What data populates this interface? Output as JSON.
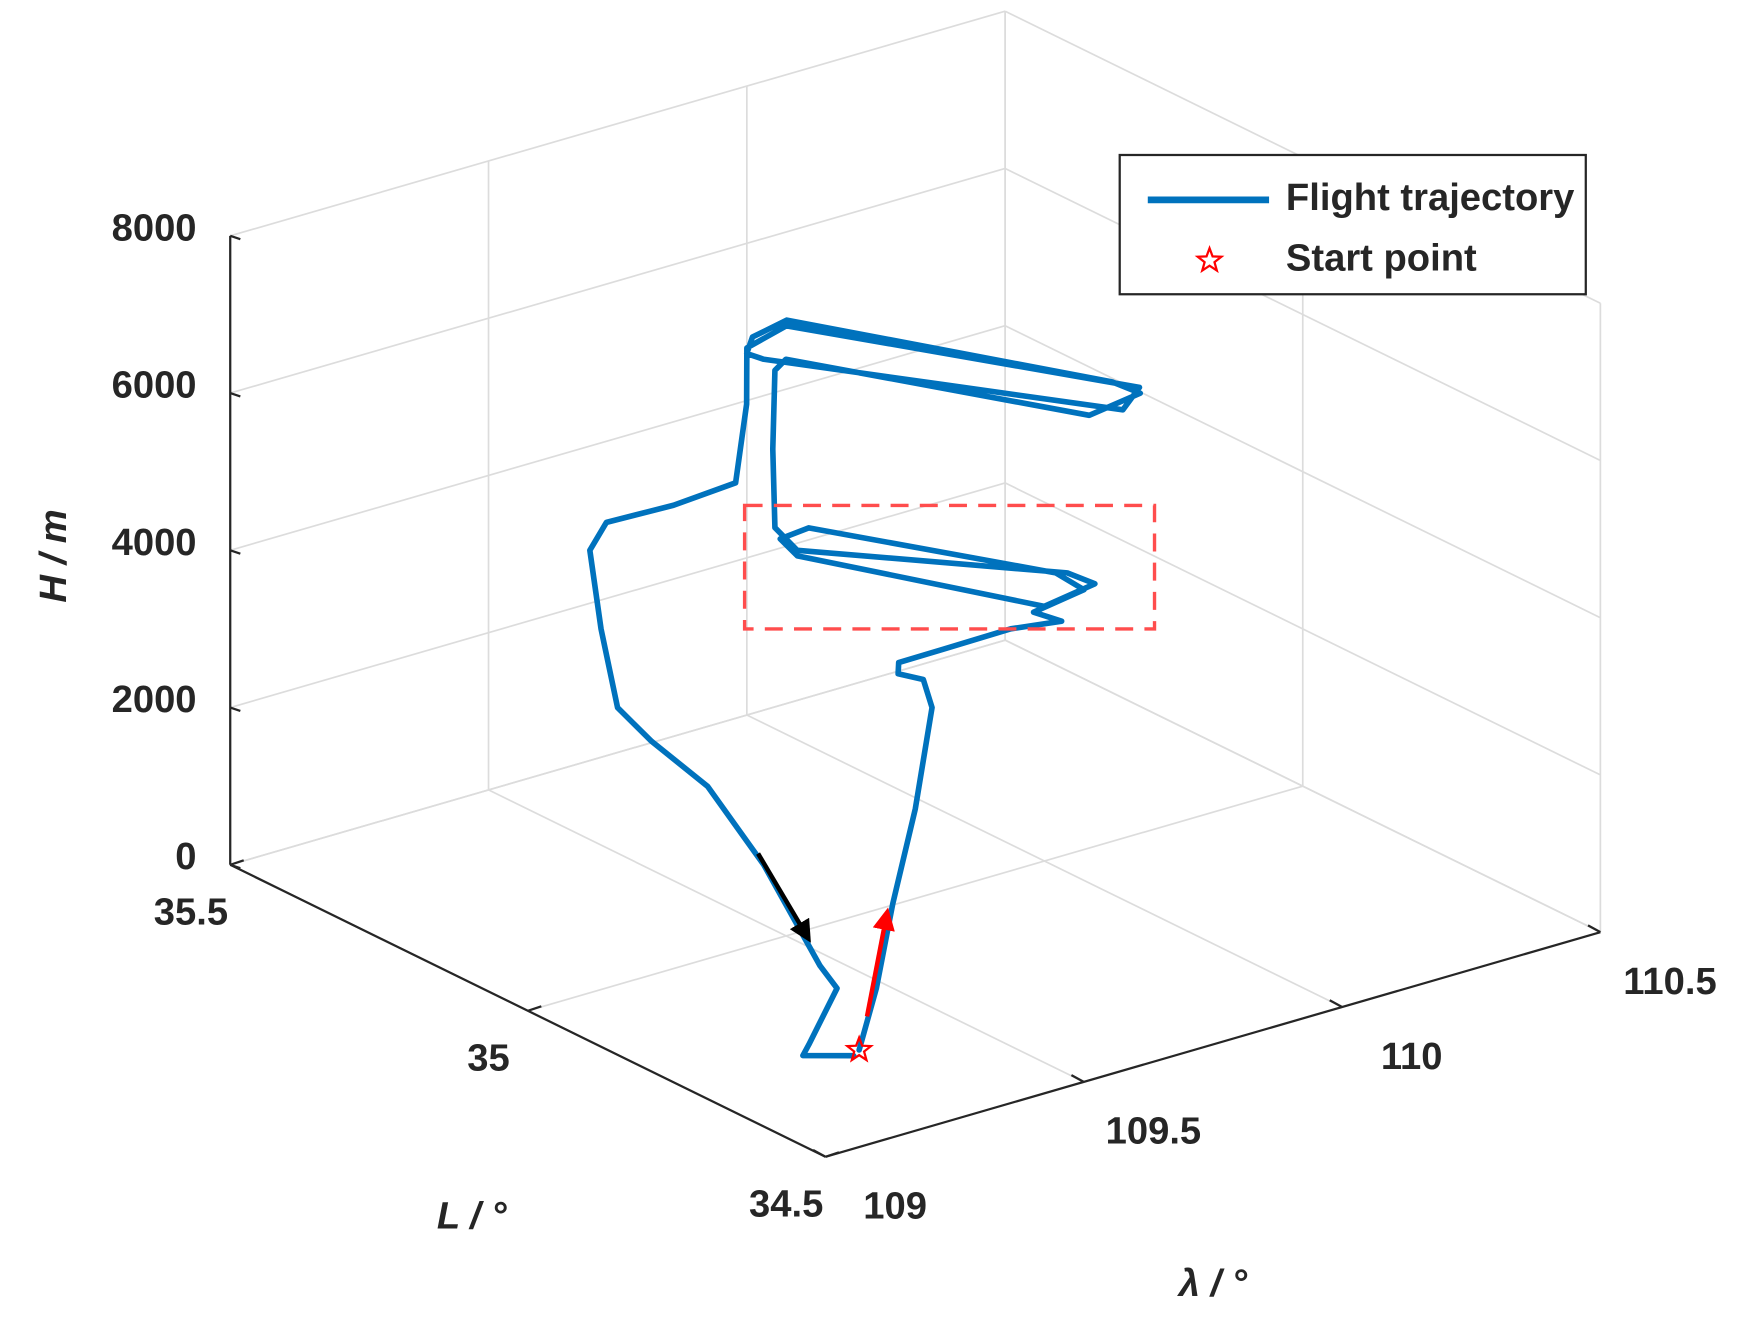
{
  "chart_data": {
    "type": "line3d",
    "xlabel": "λ / °",
    "ylabel": "L / °",
    "zlabel": "H / m",
    "xlim": [
      109,
      110.5
    ],
    "xticks": [
      109,
      109.5,
      110,
      110.5
    ],
    "ylim": [
      34.5,
      35.5
    ],
    "yticks": [
      34.5,
      35,
      35.5
    ],
    "zlim": [
      0,
      8000
    ],
    "zticks": [
      0,
      2000,
      4000,
      6000,
      8000
    ],
    "grid": true,
    "legend": "upper right",
    "series": [
      {
        "name": "Flight trajectory",
        "color": "#0072bd",
        "x": [
          109.306,
          109.421,
          109.553,
          109.719,
          109.893,
          109.913,
          109.877,
          109.886,
          109.915,
          109.989,
          110.031,
          109.98,
          110.058,
          110.046,
          109.857,
          109.795,
          109.774,
          109.949,
          110.047,
          110.021,
          109.729,
          109.719,
          109.716,
          109.719,
          109.76,
          109.99,
          110.107,
          110.101,
          109.819,
          109.716,
          109.668,
          109.694,
          110.025,
          110.101,
          109.785,
          109.682,
          109.601,
          109.529,
          109.456,
          109.371,
          109.34,
          109.295,
          109.237,
          109.273,
          109.327,
          109.337,
          109.311,
          109.315,
          109.219,
          109.204,
          109.285
        ],
        "y": [
          34.709,
          34.78,
          34.867,
          34.973,
          35.096,
          35.128,
          35.139,
          35.146,
          35.096,
          35.047,
          34.998,
          35.001,
          34.984,
          35.021,
          35.272,
          35.266,
          35.219,
          34.956,
          34.956,
          34.98,
          35.18,
          35.209,
          35.21,
          35.209,
          35.226,
          34.916,
          34.932,
          34.974,
          35.276,
          35.244,
          35.212,
          35.206,
          34.89,
          34.928,
          35.247,
          35.224,
          35.154,
          35.11,
          35.151,
          35.19,
          35.191,
          35.133,
          35.055,
          35.029,
          34.982,
          34.896,
          34.779,
          34.754,
          34.718,
          34.715,
          34.7
        ],
        "z": [
          0,
          300,
          800,
          1300,
          1800,
          2000,
          2100,
          2200,
          2500,
          2800,
          3000,
          3200,
          3400,
          3500,
          3500,
          3500,
          3500,
          3500,
          3600,
          3700,
          3800,
          4000,
          5000,
          6000,
          6000,
          6000,
          6000,
          6000,
          6200,
          6300,
          6300,
          6200,
          6100,
          6100,
          6300,
          6300,
          6000,
          5300,
          5000,
          4800,
          4500,
          3800,
          3200,
          2800,
          2300,
          1600,
          800,
          600,
          200,
          100,
          0
        ]
      },
      {
        "name": "Start point",
        "color": "#ff0000",
        "marker": "star",
        "x": [
          109.306
        ],
        "y": [
          34.709
        ],
        "z": [
          0
        ]
      }
    ]
  }
}
